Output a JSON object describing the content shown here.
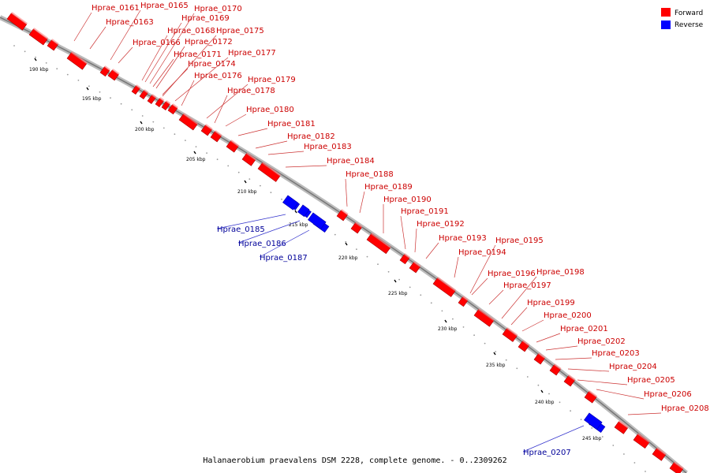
{
  "caption": "Halanaerobium praevalens DSM 2228, complete genome. - 0..2309262",
  "legend": [
    {
      "label": "Forward",
      "color": "#ff0000"
    },
    {
      "label": "Reverse",
      "color": "#0000ff"
    }
  ],
  "colors": {
    "forward": "#ff0000",
    "reverse": "#0000ff",
    "forward_label": "#cc0000",
    "reverse_label": "#000099",
    "backbone": "#999999"
  },
  "ticks": [
    "190 kbp",
    "195 kbp",
    "200 kbp",
    "205 kbp",
    "210 kbp",
    "215 kbp",
    "220 kbp",
    "225 kbp",
    "230 kbp",
    "235 kbp",
    "240 kbp",
    "245 kbp"
  ],
  "genes": [
    {
      "name": "Hprae_0161",
      "strand": "forward"
    },
    {
      "name": "Hprae_0163",
      "strand": "forward"
    },
    {
      "name": "Hprae_0165",
      "strand": "forward"
    },
    {
      "name": "Hprae_0166",
      "strand": "forward"
    },
    {
      "name": "Hprae_0168",
      "strand": "forward"
    },
    {
      "name": "Hprae_0169",
      "strand": "forward"
    },
    {
      "name": "Hprae_0170",
      "strand": "forward"
    },
    {
      "name": "Hprae_0171",
      "strand": "forward"
    },
    {
      "name": "Hprae_0172",
      "strand": "forward"
    },
    {
      "name": "Hprae_0174",
      "strand": "forward"
    },
    {
      "name": "Hprae_0175",
      "strand": "forward"
    },
    {
      "name": "Hprae_0176",
      "strand": "forward"
    },
    {
      "name": "Hprae_0177",
      "strand": "forward"
    },
    {
      "name": "Hprae_0178",
      "strand": "forward"
    },
    {
      "name": "Hprae_0179",
      "strand": "forward"
    },
    {
      "name": "Hprae_0180",
      "strand": "forward"
    },
    {
      "name": "Hprae_0181",
      "strand": "forward"
    },
    {
      "name": "Hprae_0182",
      "strand": "forward"
    },
    {
      "name": "Hprae_0183",
      "strand": "forward"
    },
    {
      "name": "Hprae_0184",
      "strand": "forward"
    },
    {
      "name": "Hprae_0185",
      "strand": "reverse"
    },
    {
      "name": "Hprae_0186",
      "strand": "reverse"
    },
    {
      "name": "Hprae_0187",
      "strand": "reverse"
    },
    {
      "name": "Hprae_0188",
      "strand": "forward"
    },
    {
      "name": "Hprae_0189",
      "strand": "forward"
    },
    {
      "name": "Hprae_0190",
      "strand": "forward"
    },
    {
      "name": "Hprae_0191",
      "strand": "forward"
    },
    {
      "name": "Hprae_0192",
      "strand": "forward"
    },
    {
      "name": "Hprae_0193",
      "strand": "forward"
    },
    {
      "name": "Hprae_0194",
      "strand": "forward"
    },
    {
      "name": "Hprae_0195",
      "strand": "forward"
    },
    {
      "name": "Hprae_0196",
      "strand": "forward"
    },
    {
      "name": "Hprae_0197",
      "strand": "forward"
    },
    {
      "name": "Hprae_0198",
      "strand": "forward"
    },
    {
      "name": "Hprae_0199",
      "strand": "forward"
    },
    {
      "name": "Hprae_0200",
      "strand": "forward"
    },
    {
      "name": "Hprae_0201",
      "strand": "forward"
    },
    {
      "name": "Hprae_0202",
      "strand": "forward"
    },
    {
      "name": "Hprae_0203",
      "strand": "forward"
    },
    {
      "name": "Hprae_0204",
      "strand": "forward"
    },
    {
      "name": "Hprae_0205",
      "strand": "forward"
    },
    {
      "name": "Hprae_0206",
      "strand": "forward"
    },
    {
      "name": "Hprae_0207",
      "strand": "reverse"
    },
    {
      "name": "Hprae_0208",
      "strand": "forward"
    }
  ]
}
